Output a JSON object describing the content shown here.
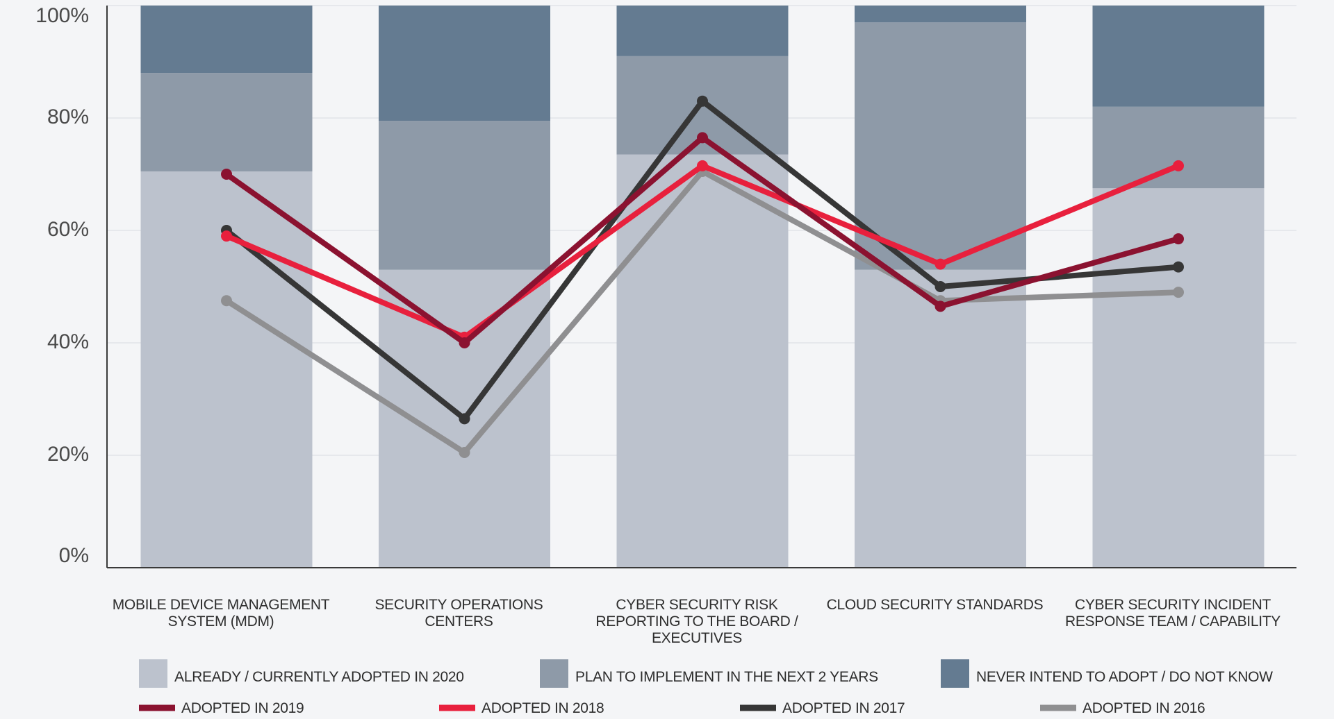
{
  "chart_data": {
    "type": "bar",
    "stacked": true,
    "categories": [
      [
        "MOBILE DEVICE MANAGEMENT",
        "SYSTEM (MDM)"
      ],
      [
        "SECURITY OPERATIONS",
        "CENTERS"
      ],
      [
        "CYBER SECURITY RISK",
        "REPORTING TO THE BOARD /",
        "EXECUTIVES"
      ],
      [
        "CLOUD SECURITY STANDARDS"
      ],
      [
        "CYBER SECURITY INCIDENT",
        "RESPONSE TEAM / CAPABILITY"
      ]
    ],
    "ylim": [
      0,
      100
    ],
    "yticks": [
      {
        "value": 0,
        "label": "0%"
      },
      {
        "value": 20,
        "label": "20%"
      },
      {
        "value": 40,
        "label": "40%"
      },
      {
        "value": 60,
        "label": "60%"
      },
      {
        "value": 80,
        "label": "80%"
      },
      {
        "value": 100,
        "label": "100%"
      }
    ],
    "grid": true,
    "bar_series": [
      {
        "name": "ALREADY / CURRENTLY ADOPTED IN 2020",
        "color": "#bcc2cd",
        "values": [
          70.5,
          53,
          73.5,
          53,
          67.5
        ]
      },
      {
        "name": "PLAN TO IMPLEMENT IN THE NEXT 2 YEARS",
        "color": "#8e9aa8",
        "values": [
          17.5,
          26.5,
          17.5,
          44,
          14.5
        ]
      },
      {
        "name": "NEVER INTEND TO ADOPT / DO NOT KNOW",
        "color": "#647b91",
        "values": [
          12,
          20.5,
          9,
          3,
          18
        ]
      }
    ],
    "line_series": [
      {
        "name": "ADOPTED IN 2019",
        "color": "#8b1230",
        "values": [
          70,
          40,
          76.5,
          46.5,
          58.5
        ]
      },
      {
        "name": "ADOPTED IN 2018",
        "color": "#e8203d",
        "values": [
          59,
          41,
          71.5,
          54,
          71.5
        ]
      },
      {
        "name": "ADOPTED IN 2017",
        "color": "#363636",
        "values": [
          60,
          26.5,
          83,
          50,
          53.5
        ]
      },
      {
        "name": "ADOPTED IN 2016",
        "color": "#8f8f91",
        "values": [
          47.5,
          20.5,
          70.5,
          47.5,
          49
        ]
      }
    ],
    "legend_position": "bottom"
  }
}
